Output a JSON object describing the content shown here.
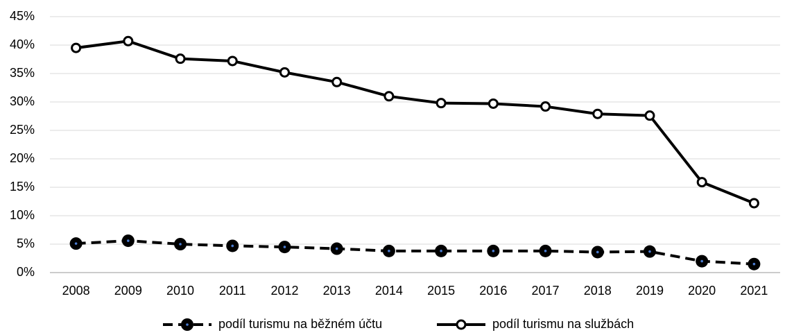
{
  "chart_data": {
    "type": "line",
    "categories": [
      "2008",
      "2009",
      "2010",
      "2011",
      "2012",
      "2013",
      "2014",
      "2015",
      "2016",
      "2017",
      "2018",
      "2019",
      "2020",
      "2021"
    ],
    "series": [
      {
        "name": "podíl turismu na běžném účtu",
        "color": "#000000",
        "dashed": true,
        "values": [
          5.1,
          5.6,
          5.0,
          4.7,
          4.5,
          4.2,
          3.8,
          3.8,
          3.8,
          3.8,
          3.6,
          3.7,
          2.0,
          1.5
        ]
      },
      {
        "name": "podíl turismu na službách",
        "color": "#000000",
        "dashed": false,
        "values": [
          39.5,
          40.7,
          37.6,
          37.2,
          35.2,
          33.5,
          31.0,
          29.8,
          29.7,
          29.2,
          27.9,
          27.6,
          15.9,
          12.2
        ]
      }
    ],
    "ylim": [
      0,
      45
    ],
    "yticks": [
      {
        "value": 0,
        "label": "0%"
      },
      {
        "value": 5,
        "label": "5%"
      },
      {
        "value": 10,
        "label": "10%"
      },
      {
        "value": 15,
        "label": "15%"
      },
      {
        "value": 20,
        "label": "20%"
      },
      {
        "value": 25,
        "label": "25%"
      },
      {
        "value": 30,
        "label": "30%"
      },
      {
        "value": 35,
        "label": "35%"
      },
      {
        "value": 40,
        "label": "40%"
      },
      {
        "value": 45,
        "label": "45%"
      }
    ],
    "grid": true,
    "legend": "bottom"
  }
}
